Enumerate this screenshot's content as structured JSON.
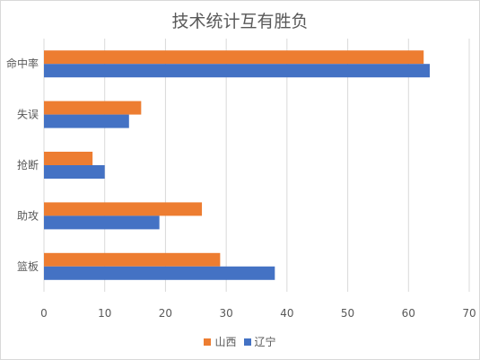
{
  "chart_data": {
    "type": "bar",
    "orientation": "horizontal",
    "title": "技术统计互有胜负",
    "categories": [
      "命中率",
      "失误",
      "抢断",
      "助攻",
      "篮板"
    ],
    "series": [
      {
        "name": "山西",
        "color": "#ED7D31",
        "values": [
          62.5,
          16,
          8,
          26,
          29
        ]
      },
      {
        "name": "辽宁",
        "color": "#4472C4",
        "values": [
          63.5,
          14,
          10,
          19,
          38
        ]
      }
    ],
    "xlim": [
      0,
      70
    ],
    "x_ticks": [
      0,
      10,
      20,
      30,
      40,
      50,
      60,
      70
    ],
    "grid": true,
    "legend_position": "bottom"
  }
}
